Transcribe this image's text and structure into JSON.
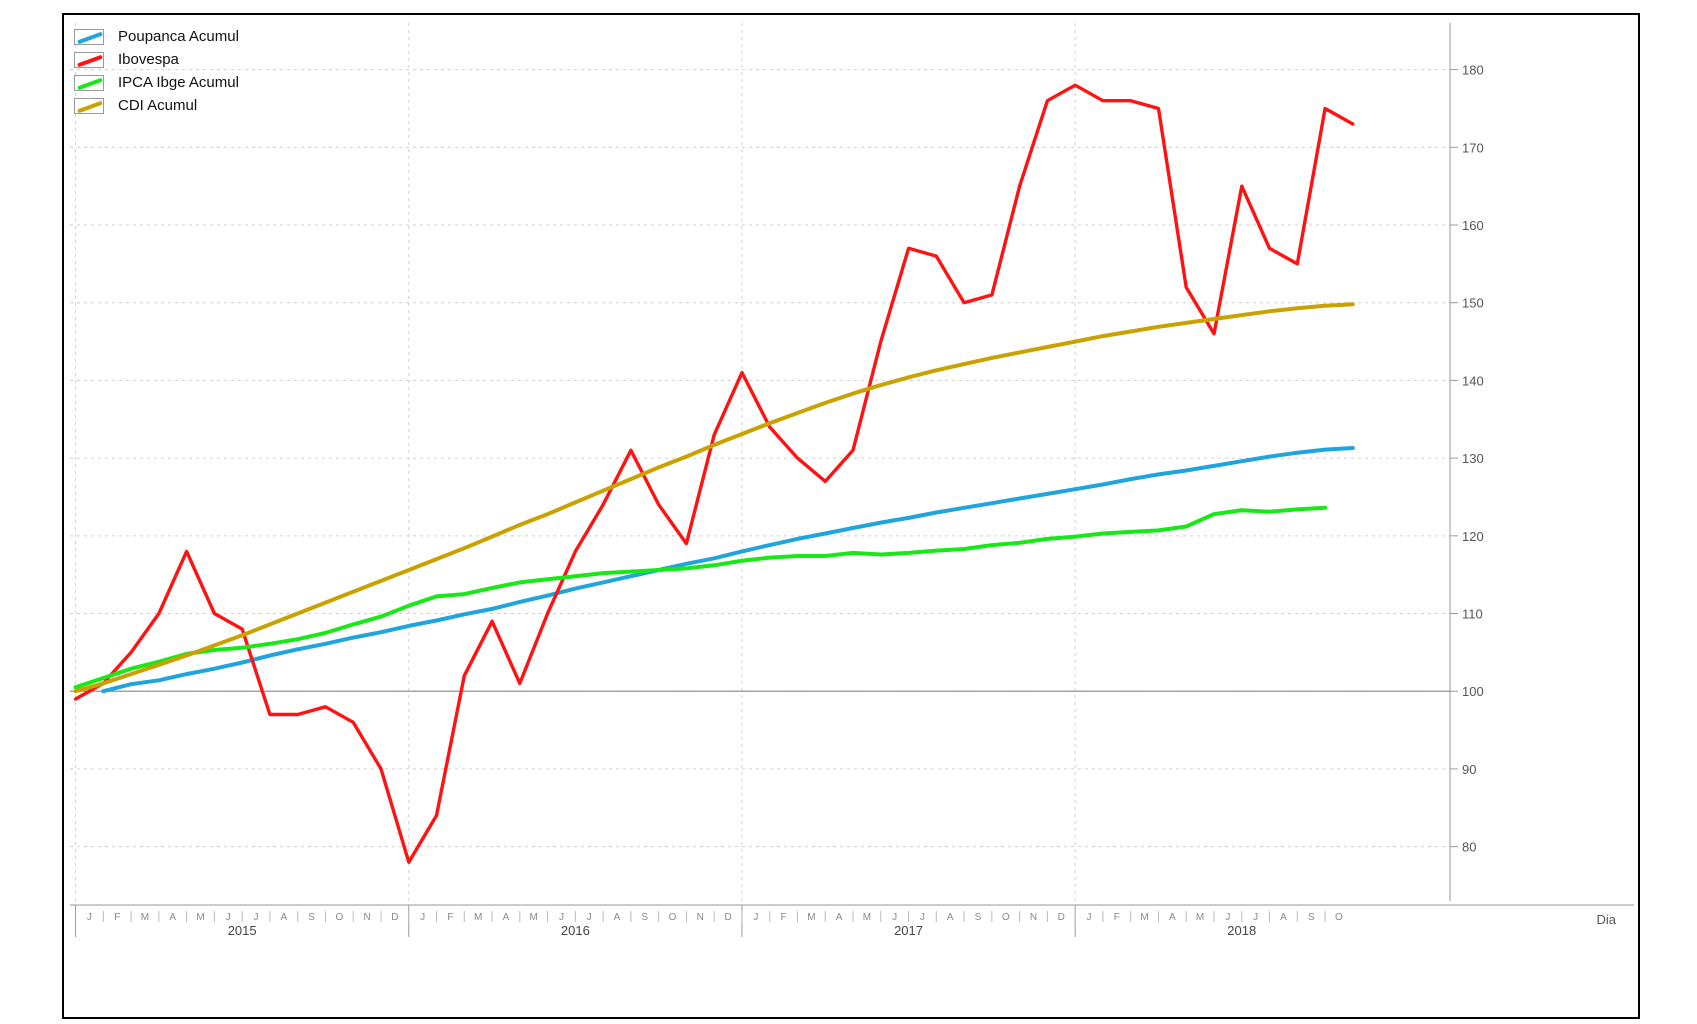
{
  "chart_data": {
    "type": "line",
    "xlabel": "Dia",
    "ylabel": "",
    "ylim": [
      73,
      186
    ],
    "y_ticks": [
      80,
      90,
      100,
      110,
      120,
      130,
      140,
      150,
      160,
      170,
      180
    ],
    "baseline": 100,
    "grid": true,
    "legend_position": "top-left",
    "x_start": "2015-01",
    "x_end": "2019-01",
    "x_range_months": [
      -0.2,
      49.5
    ],
    "month_ticks": [
      "J",
      "F",
      "M",
      "A",
      "M",
      "J",
      "J",
      "A",
      "S",
      "O",
      "N",
      "D",
      "J",
      "F",
      "M",
      "A",
      "M",
      "J",
      "J",
      "A",
      "S",
      "O",
      "N",
      "D",
      "J",
      "F",
      "M",
      "A",
      "M",
      "J",
      "J",
      "A",
      "S",
      "O",
      "N",
      "D",
      "J",
      "F",
      "M",
      "A",
      "M",
      "J",
      "J",
      "A",
      "S",
      "O"
    ],
    "year_labels": [
      "2015",
      "2016",
      "2017",
      "2018"
    ],
    "series": [
      {
        "name": "Poupanca Acumul",
        "color": "#1fa4dc",
        "x": [
          "2015-02",
          "2015-03",
          "2015-04",
          "2015-05",
          "2015-06",
          "2015-07",
          "2015-08",
          "2015-09",
          "2015-10",
          "2015-11",
          "2015-12",
          "2016-01",
          "2016-02",
          "2016-03",
          "2016-04",
          "2016-05",
          "2016-06",
          "2016-07",
          "2016-08",
          "2016-09",
          "2016-10",
          "2016-11",
          "2016-12",
          "2017-01",
          "2017-02",
          "2017-03",
          "2017-04",
          "2017-05",
          "2017-06",
          "2017-07",
          "2017-08",
          "2017-09",
          "2017-10",
          "2017-11",
          "2017-12",
          "2018-01",
          "2018-02",
          "2018-03",
          "2018-04",
          "2018-05",
          "2018-06",
          "2018-07",
          "2018-08",
          "2018-09",
          "2018-10",
          "2018-11"
        ],
        "values": [
          100.0,
          100.9,
          101.4,
          102.2,
          102.9,
          103.7,
          104.6,
          105.4,
          106.1,
          106.9,
          107.6,
          108.4,
          109.1,
          109.9,
          110.6,
          111.5,
          112.3,
          113.2,
          114.0,
          114.8,
          115.6,
          116.4,
          117.1,
          118.0,
          118.8,
          119.6,
          120.3,
          121.0,
          121.7,
          122.3,
          123.0,
          123.6,
          124.2,
          124.8,
          125.4,
          126.0,
          126.6,
          127.3,
          127.9,
          128.4,
          129.0,
          129.6,
          130.2,
          130.7,
          131.1,
          131.3
        ]
      },
      {
        "name": "Ibovespa",
        "color": "#ff1212",
        "x": [
          "2015-01",
          "2015-02",
          "2015-03",
          "2015-04",
          "2015-05",
          "2015-06",
          "2015-07",
          "2015-08",
          "2015-09",
          "2015-10",
          "2015-11",
          "2015-12",
          "2016-01",
          "2016-02",
          "2016-03",
          "2016-04",
          "2016-05",
          "2016-06",
          "2016-07",
          "2016-08",
          "2016-09",
          "2016-10",
          "2016-11",
          "2016-12",
          "2017-01",
          "2017-02",
          "2017-03",
          "2017-04",
          "2017-05",
          "2017-06",
          "2017-07",
          "2017-08",
          "2017-09",
          "2017-10",
          "2017-11",
          "2017-12",
          "2018-01",
          "2018-02",
          "2018-03",
          "2018-04",
          "2018-05",
          "2018-06",
          "2018-07",
          "2018-08",
          "2018-09",
          "2018-10",
          "2018-11"
        ],
        "values": [
          99.0,
          101.0,
          105.0,
          110.0,
          118.0,
          110.0,
          108.0,
          97.0,
          97.0,
          98.0,
          96.0,
          90.0,
          78.0,
          84.0,
          102.0,
          109.0,
          101.0,
          110.0,
          118.0,
          124.0,
          131.0,
          124.0,
          119.0,
          133.0,
          141.0,
          134.0,
          130.0,
          127.0,
          131.0,
          145.0,
          157.0,
          156.0,
          150.0,
          151.0,
          165.0,
          176.0,
          178.0,
          176.0,
          176.0,
          175.0,
          152.0,
          146.0,
          165.0,
          157.0,
          155.0,
          175.0,
          173.0
        ]
      },
      {
        "name": "IPCA Ibge Acumul",
        "color": "#18e818",
        "x": [
          "2015-01",
          "2015-02",
          "2015-03",
          "2015-04",
          "2015-05",
          "2015-06",
          "2015-07",
          "2015-08",
          "2015-09",
          "2015-10",
          "2015-11",
          "2015-12",
          "2016-01",
          "2016-02",
          "2016-03",
          "2016-04",
          "2016-05",
          "2016-06",
          "2016-07",
          "2016-08",
          "2016-09",
          "2016-10",
          "2016-11",
          "2016-12",
          "2017-01",
          "2017-02",
          "2017-03",
          "2017-04",
          "2017-05",
          "2017-06",
          "2017-07",
          "2017-08",
          "2017-09",
          "2017-10",
          "2017-11",
          "2017-12",
          "2018-01",
          "2018-02",
          "2018-03",
          "2018-04",
          "2018-05",
          "2018-06",
          "2018-07",
          "2018-08",
          "2018-09",
          "2018-10"
        ],
        "values": [
          100.5,
          101.7,
          102.9,
          103.8,
          104.8,
          105.3,
          105.6,
          106.1,
          106.7,
          107.5,
          108.6,
          109.6,
          111.0,
          112.2,
          112.5,
          113.3,
          114.0,
          114.4,
          114.8,
          115.2,
          115.4,
          115.6,
          115.8,
          116.2,
          116.8,
          117.2,
          117.4,
          117.4,
          117.8,
          117.6,
          117.8,
          118.1,
          118.3,
          118.8,
          119.1,
          119.6,
          119.9,
          120.3,
          120.5,
          120.7,
          121.2,
          122.8,
          123.3,
          123.1,
          123.4,
          123.6
        ]
      },
      {
        "name": "CDI Acumul",
        "color": "#c9a200",
        "x": [
          "2015-01",
          "2015-02",
          "2015-03",
          "2015-04",
          "2015-05",
          "2015-06",
          "2015-07",
          "2015-08",
          "2015-09",
          "2015-10",
          "2015-11",
          "2015-12",
          "2016-01",
          "2016-02",
          "2016-03",
          "2016-04",
          "2016-05",
          "2016-06",
          "2016-07",
          "2016-08",
          "2016-09",
          "2016-10",
          "2016-11",
          "2016-12",
          "2017-01",
          "2017-02",
          "2017-03",
          "2017-04",
          "2017-05",
          "2017-06",
          "2017-07",
          "2017-08",
          "2017-09",
          "2017-10",
          "2017-11",
          "2017-12",
          "2018-01",
          "2018-02",
          "2018-03",
          "2018-04",
          "2018-05",
          "2018-06",
          "2018-07",
          "2018-08",
          "2018-09",
          "2018-10",
          "2018-11"
        ],
        "values": [
          100.0,
          101.0,
          102.2,
          103.4,
          104.6,
          105.9,
          107.2,
          108.6,
          110.0,
          111.4,
          112.8,
          114.2,
          115.6,
          117.0,
          118.4,
          119.9,
          121.4,
          122.8,
          124.3,
          125.8,
          127.3,
          128.8,
          130.2,
          131.7,
          133.1,
          134.5,
          135.8,
          137.1,
          138.3,
          139.4,
          140.4,
          141.3,
          142.1,
          142.9,
          143.6,
          144.3,
          145.0,
          145.7,
          146.3,
          146.9,
          147.4,
          147.9,
          148.4,
          148.9,
          149.3,
          149.6,
          149.8
        ]
      }
    ]
  }
}
